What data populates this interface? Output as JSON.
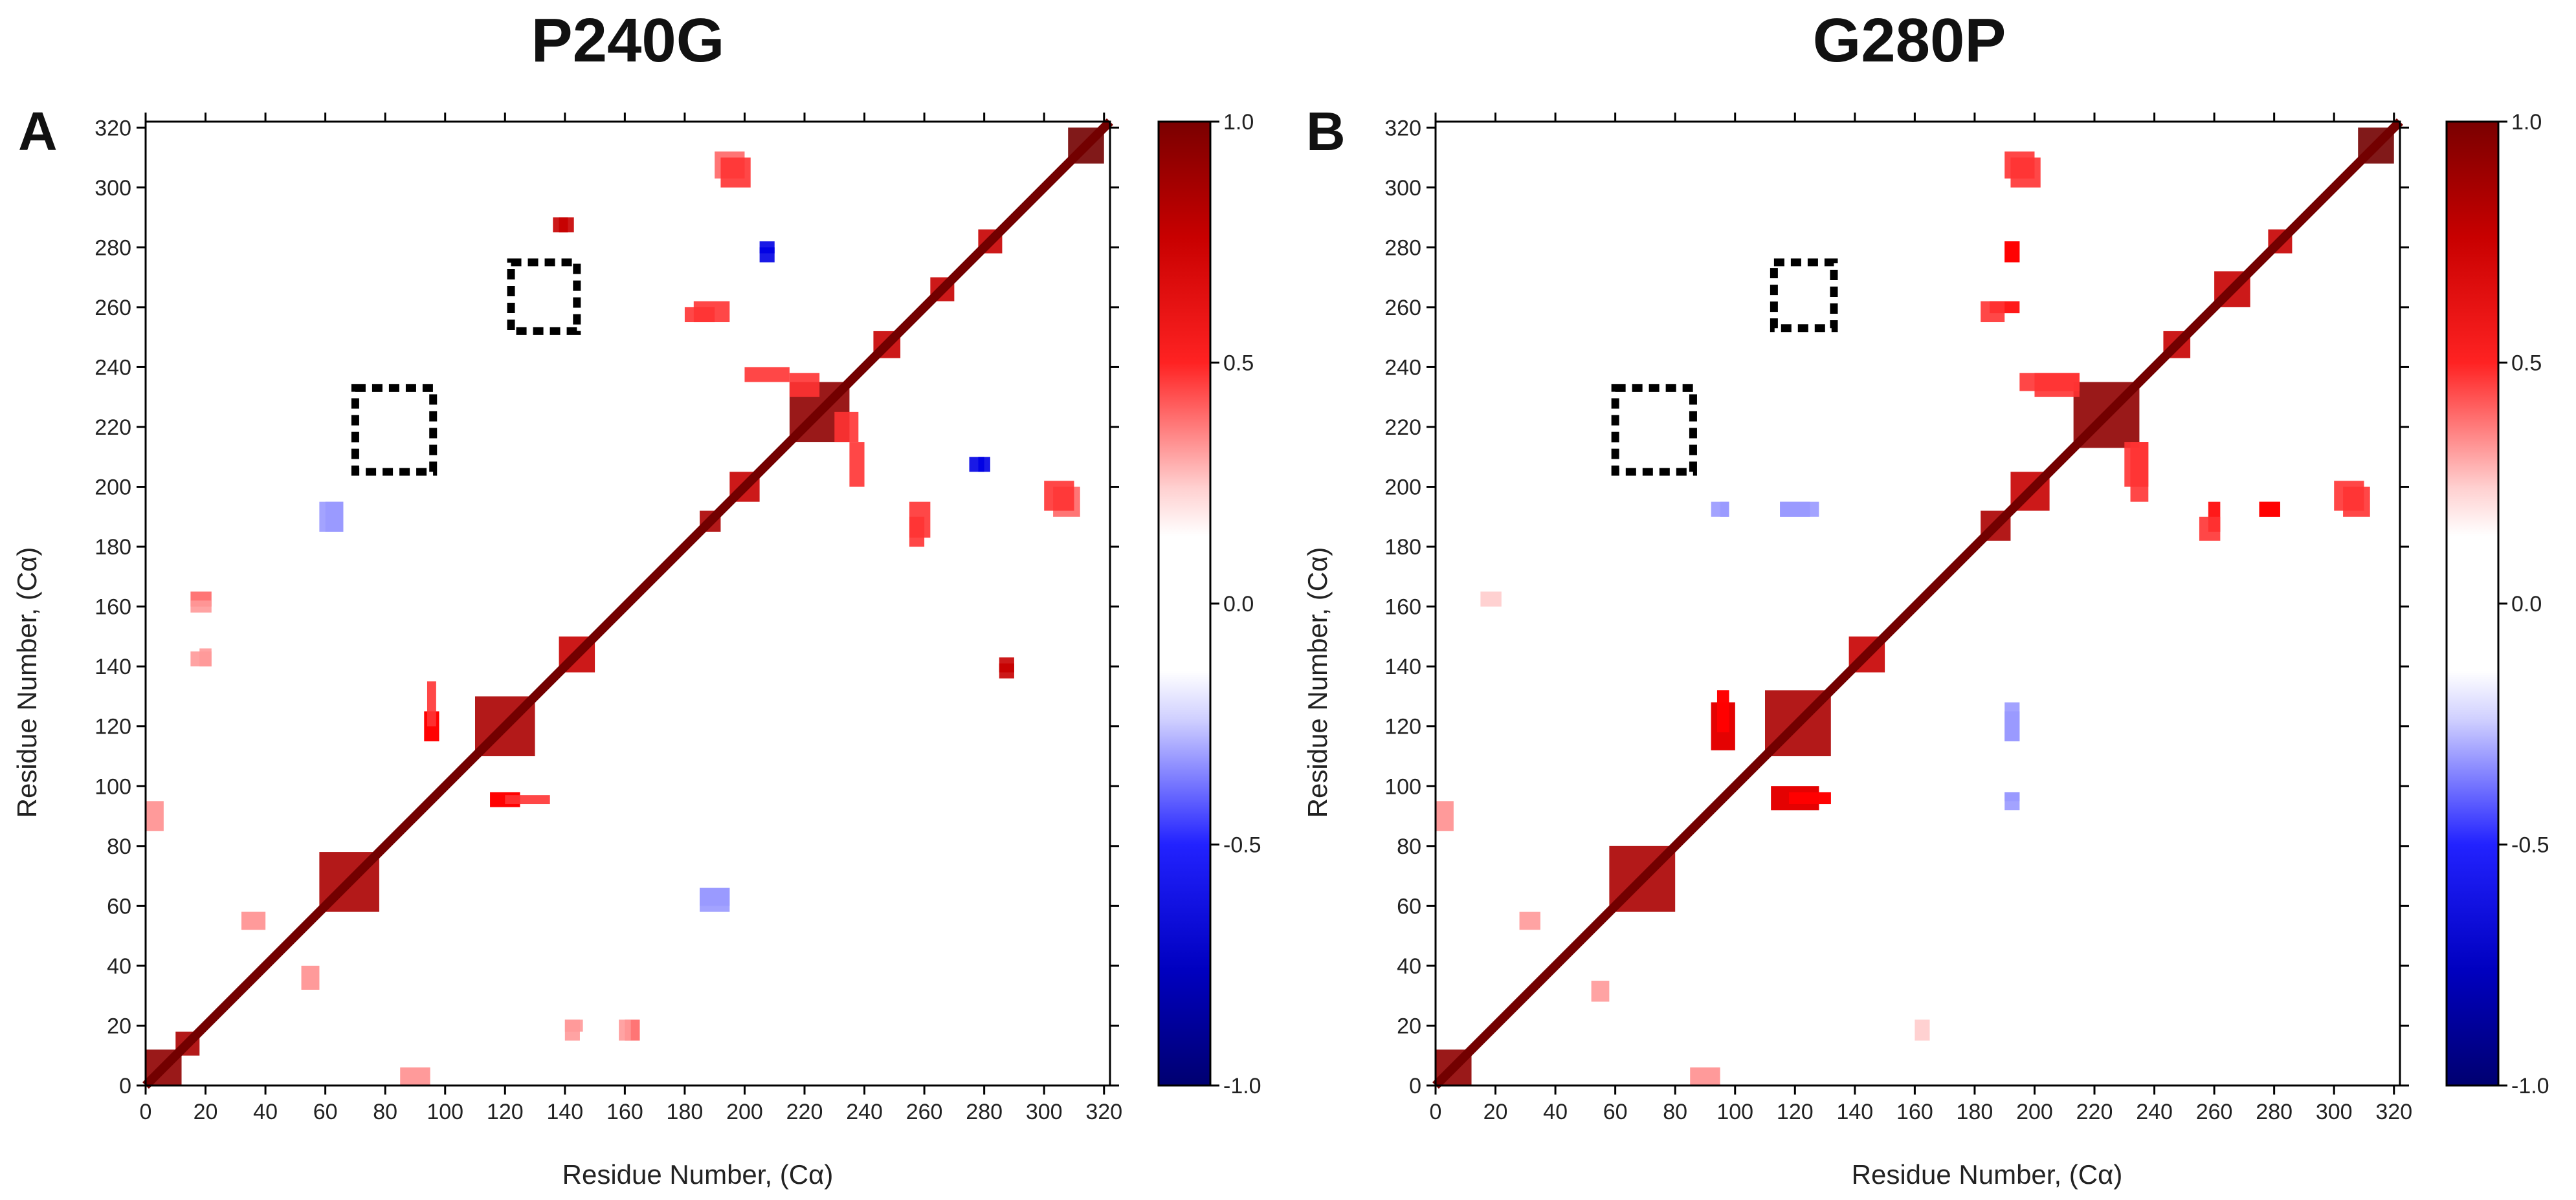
{
  "chart_data": [
    {
      "type": "heatmap",
      "panel_letter": "A",
      "title": "P240G",
      "xlabel": "Residue Number, (Cα)",
      "ylabel": "Residue Number, (Cα)",
      "xlim": [
        0,
        322
      ],
      "ylim": [
        0,
        322
      ],
      "x_ticks": [
        0,
        20,
        40,
        60,
        80,
        100,
        120,
        140,
        160,
        180,
        200,
        220,
        240,
        260,
        280,
        300,
        320
      ],
      "y_ticks": [
        0,
        20,
        40,
        60,
        80,
        100,
        120,
        140,
        160,
        180,
        200,
        220,
        240,
        260,
        280,
        300,
        320
      ],
      "colorbar": {
        "min": -1.0,
        "max": 1.0,
        "ticks": [
          "1.0",
          "0.5",
          "0.0",
          "-0.5",
          "-1.0"
        ]
      },
      "diagonal_value": 1.0,
      "blocks": [
        {
          "x": [
            0,
            12
          ],
          "y": [
            0,
            12
          ],
          "v": 0.95
        },
        {
          "x": [
            10,
            18
          ],
          "y": [
            10,
            18
          ],
          "v": 0.9
        },
        {
          "x": [
            58,
            78
          ],
          "y": [
            58,
            78
          ],
          "v": 0.9
        },
        {
          "x": [
            110,
            130
          ],
          "y": [
            110,
            130
          ],
          "v": 0.9
        },
        {
          "x": [
            138,
            150
          ],
          "y": [
            138,
            150
          ],
          "v": 0.85
        },
        {
          "x": [
            185,
            192
          ],
          "y": [
            185,
            192
          ],
          "v": 0.9
        },
        {
          "x": [
            195,
            205
          ],
          "y": [
            195,
            205
          ],
          "v": 0.85
        },
        {
          "x": [
            215,
            235
          ],
          "y": [
            215,
            235
          ],
          "v": 0.95
        },
        {
          "x": [
            243,
            252
          ],
          "y": [
            243,
            252
          ],
          "v": 0.85
        },
        {
          "x": [
            262,
            270
          ],
          "y": [
            262,
            270
          ],
          "v": 0.85
        },
        {
          "x": [
            278,
            286
          ],
          "y": [
            278,
            286
          ],
          "v": 0.85
        },
        {
          "x": [
            308,
            320
          ],
          "y": [
            308,
            320
          ],
          "v": 1.0
        },
        {
          "x": [
            93,
            98
          ],
          "y": [
            115,
            125
          ],
          "v": 0.75
        },
        {
          "x": [
            115,
            125
          ],
          "y": [
            93,
            98
          ],
          "v": 0.75
        },
        {
          "x": [
            120,
            135
          ],
          "y": [
            94,
            97
          ],
          "v": 0.7
        },
        {
          "x": [
            200,
            215
          ],
          "y": [
            235,
            240
          ],
          "v": 0.7
        },
        {
          "x": [
            230,
            238
          ],
          "y": [
            215,
            225
          ],
          "v": 0.7
        },
        {
          "x": [
            15,
            22
          ],
          "y": [
            160,
            165
          ],
          "v": 0.65
        },
        {
          "x": [
            15,
            22
          ],
          "y": [
            140,
            145
          ],
          "v": 0.6
        },
        {
          "x": [
            183,
            195
          ],
          "y": [
            255,
            262
          ],
          "v": 0.7
        },
        {
          "x": [
            190,
            200
          ],
          "y": [
            303,
            312
          ],
          "v": 0.65
        },
        {
          "x": [
            255,
            260
          ],
          "y": [
            180,
            190
          ],
          "v": 0.7
        },
        {
          "x": [
            300,
            310
          ],
          "y": [
            192,
            202
          ],
          "v": 0.7
        },
        {
          "x": [
            60,
            66
          ],
          "y": [
            185,
            195
          ],
          "v": -0.6
        },
        {
          "x": [
            185,
            195
          ],
          "y": [
            58,
            66
          ],
          "v": -0.6
        },
        {
          "x": [
            205,
            210
          ],
          "y": [
            278,
            282
          ],
          "v": -0.8
        },
        {
          "x": [
            275,
            280
          ],
          "y": [
            205,
            210
          ],
          "v": -0.8
        },
        {
          "x": [
            285,
            290
          ],
          "y": [
            136,
            141
          ],
          "v": 0.85
        },
        {
          "x": [
            138,
            143
          ],
          "y": [
            285,
            290
          ],
          "v": 0.85
        },
        {
          "x": [
            140,
            146
          ],
          "y": [
            18,
            22
          ],
          "v": 0.6
        },
        {
          "x": [
            158,
            162
          ],
          "y": [
            15,
            22
          ],
          "v": 0.6
        },
        {
          "x": [
            32,
            40
          ],
          "y": [
            52,
            58
          ],
          "v": 0.6
        },
        {
          "x": [
            52,
            58
          ],
          "y": [
            32,
            40
          ],
          "v": 0.6
        },
        {
          "x": [
            0,
            6
          ],
          "y": [
            85,
            95
          ],
          "v": 0.6
        },
        {
          "x": [
            85,
            95
          ],
          "y": [
            0,
            6
          ],
          "v": 0.6
        }
      ],
      "dashed_boxes": [
        {
          "x": [
            70,
            96
          ],
          "y": [
            205,
            233
          ]
        },
        {
          "x": [
            122,
            144
          ],
          "y": [
            252,
            275
          ]
        }
      ]
    },
    {
      "type": "heatmap",
      "panel_letter": "B",
      "title": "G280P",
      "xlabel": "Residue Number, (Cα)",
      "ylabel": "Residue Number, (Cα)",
      "xlim": [
        0,
        322
      ],
      "ylim": [
        0,
        322
      ],
      "x_ticks": [
        0,
        20,
        40,
        60,
        80,
        100,
        120,
        140,
        160,
        180,
        200,
        220,
        240,
        260,
        280,
        300,
        320
      ],
      "y_ticks": [
        0,
        20,
        40,
        60,
        80,
        100,
        120,
        140,
        160,
        180,
        200,
        220,
        240,
        260,
        280,
        300,
        320
      ],
      "colorbar": {
        "min": -1.0,
        "max": 1.0,
        "ticks": [
          "1.0",
          "0.5",
          "0.0",
          "-0.5",
          "-1.0"
        ]
      },
      "diagonal_value": 1.0,
      "blocks": [
        {
          "x": [
            0,
            12
          ],
          "y": [
            0,
            12
          ],
          "v": 0.95
        },
        {
          "x": [
            58,
            80
          ],
          "y": [
            58,
            80
          ],
          "v": 0.9
        },
        {
          "x": [
            110,
            132
          ],
          "y": [
            110,
            132
          ],
          "v": 0.9
        },
        {
          "x": [
            138,
            150
          ],
          "y": [
            138,
            150
          ],
          "v": 0.85
        },
        {
          "x": [
            182,
            192
          ],
          "y": [
            182,
            192
          ],
          "v": 0.9
        },
        {
          "x": [
            192,
            205
          ],
          "y": [
            192,
            205
          ],
          "v": 0.85
        },
        {
          "x": [
            213,
            235
          ],
          "y": [
            213,
            235
          ],
          "v": 0.95
        },
        {
          "x": [
            243,
            252
          ],
          "y": [
            243,
            252
          ],
          "v": 0.85
        },
        {
          "x": [
            260,
            272
          ],
          "y": [
            260,
            272
          ],
          "v": 0.85
        },
        {
          "x": [
            278,
            286
          ],
          "y": [
            278,
            286
          ],
          "v": 0.85
        },
        {
          "x": [
            308,
            320
          ],
          "y": [
            308,
            320
          ],
          "v": 1.0
        },
        {
          "x": [
            92,
            100
          ],
          "y": [
            112,
            128
          ],
          "v": 0.8
        },
        {
          "x": [
            112,
            128
          ],
          "y": [
            92,
            100
          ],
          "v": 0.8
        },
        {
          "x": [
            118,
            132
          ],
          "y": [
            94,
            98
          ],
          "v": 0.75
        },
        {
          "x": [
            94,
            98
          ],
          "y": [
            118,
            132
          ],
          "v": 0.75
        },
        {
          "x": [
            195,
            215
          ],
          "y": [
            232,
            238
          ],
          "v": 0.7
        },
        {
          "x": [
            230,
            238
          ],
          "y": [
            200,
            215
          ],
          "v": 0.7
        },
        {
          "x": [
            185,
            195
          ],
          "y": [
            258,
            262
          ],
          "v": 0.75
        },
        {
          "x": [
            190,
            200
          ],
          "y": [
            303,
            312
          ],
          "v": 0.7
        },
        {
          "x": [
            190,
            195
          ],
          "y": [
            275,
            282
          ],
          "v": 0.75
        },
        {
          "x": [
            255,
            262
          ],
          "y": [
            182,
            190
          ],
          "v": 0.7
        },
        {
          "x": [
            275,
            282
          ],
          "y": [
            190,
            195
          ],
          "v": 0.75
        },
        {
          "x": [
            300,
            310
          ],
          "y": [
            192,
            202
          ],
          "v": 0.7
        },
        {
          "x": [
            92,
            98
          ],
          "y": [
            190,
            195
          ],
          "v": -0.6
        },
        {
          "x": [
            115,
            128
          ],
          "y": [
            190,
            195
          ],
          "v": -0.6
        },
        {
          "x": [
            190,
            195
          ],
          "y": [
            115,
            125
          ],
          "v": -0.6
        },
        {
          "x": [
            190,
            195
          ],
          "y": [
            95,
            98
          ],
          "v": -0.6
        },
        {
          "x": [
            28,
            35
          ],
          "y": [
            52,
            58
          ],
          "v": 0.6
        },
        {
          "x": [
            0,
            6
          ],
          "y": [
            85,
            95
          ],
          "v": 0.6
        },
        {
          "x": [
            85,
            95
          ],
          "y": [
            0,
            6
          ],
          "v": 0.6
        },
        {
          "x": [
            15,
            22
          ],
          "y": [
            160,
            165
          ],
          "v": 0.55
        }
      ],
      "dashed_boxes": [
        {
          "x": [
            60,
            86
          ],
          "y": [
            205,
            233
          ]
        },
        {
          "x": [
            113,
            133
          ],
          "y": [
            253,
            275
          ]
        }
      ]
    }
  ]
}
